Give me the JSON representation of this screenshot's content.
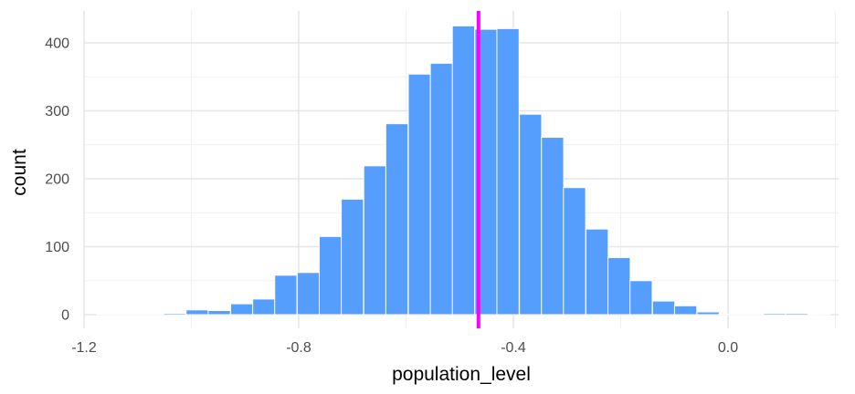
{
  "chart_data": {
    "type": "bar",
    "subtype": "histogram",
    "xlabel": "population_level",
    "ylabel": "count",
    "xlim": [
      -1.2,
      0.2
    ],
    "ylim": [
      0,
      440
    ],
    "x_ticks": [
      -1.2,
      -0.8,
      -0.4,
      0.0
    ],
    "x_tick_labels": [
      "-1.2",
      "-0.8",
      "-0.4",
      "0.0"
    ],
    "y_ticks": [
      0,
      100,
      200,
      300,
      400
    ],
    "y_tick_labels": [
      "0",
      "100",
      "200",
      "300",
      "400"
    ],
    "bin_width": 0.0414,
    "bins": [
      {
        "x": -1.155,
        "count": 1
      },
      {
        "x": -1.113,
        "count": 1
      },
      {
        "x": -1.072,
        "count": 1
      },
      {
        "x": -1.031,
        "count": 2
      },
      {
        "x": -0.989,
        "count": 7
      },
      {
        "x": -0.948,
        "count": 6
      },
      {
        "x": -0.906,
        "count": 16
      },
      {
        "x": -0.865,
        "count": 23
      },
      {
        "x": -0.824,
        "count": 58
      },
      {
        "x": -0.782,
        "count": 62
      },
      {
        "x": -0.741,
        "count": 115
      },
      {
        "x": -0.7,
        "count": 170
      },
      {
        "x": -0.658,
        "count": 219
      },
      {
        "x": -0.617,
        "count": 281
      },
      {
        "x": -0.575,
        "count": 354
      },
      {
        "x": -0.534,
        "count": 370
      },
      {
        "x": -0.493,
        "count": 425
      },
      {
        "x": -0.451,
        "count": 420
      },
      {
        "x": -0.41,
        "count": 421
      },
      {
        "x": -0.368,
        "count": 295
      },
      {
        "x": -0.327,
        "count": 261
      },
      {
        "x": -0.286,
        "count": 187
      },
      {
        "x": -0.244,
        "count": 126
      },
      {
        "x": -0.203,
        "count": 84
      },
      {
        "x": -0.162,
        "count": 50
      },
      {
        "x": -0.12,
        "count": 20
      },
      {
        "x": -0.079,
        "count": 13
      },
      {
        "x": -0.037,
        "count": 4
      },
      {
        "x": 0.004,
        "count": 1
      },
      {
        "x": 0.045,
        "count": 1
      },
      {
        "x": 0.087,
        "count": 2
      },
      {
        "x": 0.128,
        "count": 2
      },
      {
        "x": 0.17,
        "count": 1
      }
    ],
    "reference_line": {
      "x": -0.465,
      "color": "#ff00ff"
    },
    "bar_color": "#569efe",
    "grid": true
  }
}
